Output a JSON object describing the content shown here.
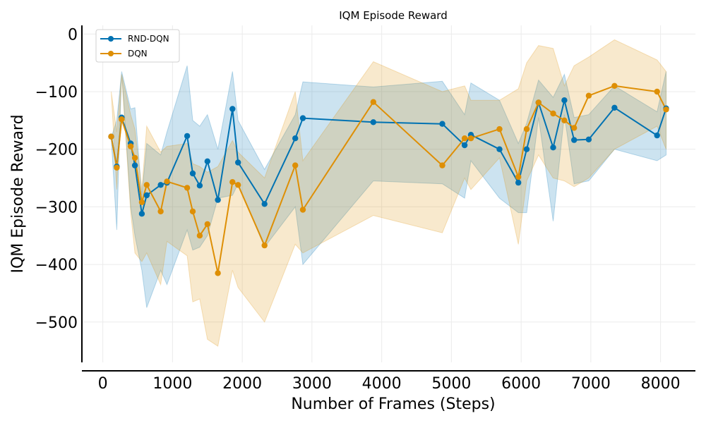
{
  "chart_data": {
    "type": "line",
    "title": "IQM Episode Reward",
    "xlabel": "Number of Frames (Steps)",
    "ylabel": "IQM Episode Reward",
    "xlim": [
      -300,
      8500
    ],
    "ylim": [
      -570,
      15
    ],
    "xticks": [
      0,
      1000,
      2000,
      3000,
      4000,
      5000,
      6000,
      7000,
      8000
    ],
    "yticks": [
      0,
      -100,
      -200,
      -300,
      -400,
      -500
    ],
    "ytick_labels": [
      "0",
      "−100",
      "−200",
      "−300",
      "−400",
      "−500"
    ],
    "grid": true,
    "legend": "top-left",
    "series": [
      {
        "name": "RND-DQN",
        "color": "#0072b2",
        "x": [
          120,
          200,
          270,
          400,
          460,
          560,
          630,
          830,
          920,
          1210,
          1290,
          1390,
          1500,
          1650,
          1860,
          1940,
          2320,
          2760,
          2870,
          3880,
          4870,
          5190,
          5280,
          5690,
          5960,
          6080,
          6250,
          6460,
          6620,
          6760,
          6970,
          7340,
          7950,
          8080
        ],
        "y": [
          -178,
          -230,
          -145,
          -190,
          -228,
          -312,
          -280,
          -262,
          -258,
          -177,
          -242,
          -263,
          -221,
          -288,
          -130,
          -223,
          -295,
          -181,
          -146,
          -153,
          -156,
          -193,
          -175,
          -200,
          -258,
          -200,
          -119,
          -197,
          -115,
          -184,
          -183,
          -128,
          -176,
          -129
        ],
        "lower": [
          -180,
          -340,
          -65,
          -300,
          -350,
          -410,
          -475,
          -410,
          -435,
          -340,
          -375,
          -370,
          -350,
          -285,
          -280,
          -260,
          -370,
          -300,
          -400,
          -255,
          -260,
          -285,
          -220,
          -285,
          -310,
          -310,
          -145,
          -325,
          -140,
          -260,
          -255,
          -200,
          -220,
          -210
        ],
        "upper": [
          -180,
          -150,
          -65,
          -130,
          -128,
          -280,
          -190,
          -210,
          -170,
          -55,
          -150,
          -160,
          -140,
          -200,
          -65,
          -150,
          -235,
          -140,
          -83,
          -92,
          -82,
          -140,
          -85,
          -115,
          -190,
          -155,
          -80,
          -110,
          -70,
          -145,
          -140,
          -90,
          -135,
          -65
        ]
      },
      {
        "name": "DQN",
        "color": "#de8f05",
        "x": [
          120,
          200,
          270,
          400,
          460,
          560,
          630,
          830,
          920,
          1210,
          1290,
          1390,
          1500,
          1650,
          1860,
          1940,
          2320,
          2760,
          2870,
          3880,
          4870,
          5190,
          5280,
          5690,
          5960,
          6080,
          6250,
          6460,
          6620,
          6760,
          6970,
          7340,
          7950,
          8080
        ],
        "y": [
          -178,
          -232,
          -148,
          -195,
          -215,
          -292,
          -262,
          -308,
          -256,
          -267,
          -308,
          -350,
          -330,
          -415,
          -257,
          -262,
          -367,
          -228,
          -305,
          -118,
          -228,
          -181,
          -181,
          -165,
          -248,
          -165,
          -119,
          -138,
          -150,
          -163,
          -107,
          -90,
          -100,
          -131
        ],
        "lower": [
          -100,
          -270,
          -70,
          -310,
          -380,
          -395,
          -380,
          -435,
          -360,
          -385,
          -465,
          -460,
          -530,
          -542,
          -410,
          -440,
          -500,
          -365,
          -380,
          -315,
          -345,
          -250,
          -270,
          -215,
          -365,
          -255,
          -210,
          -250,
          -255,
          -265,
          -250,
          -200,
          -160,
          -200
        ],
        "upper": [
          -100,
          -170,
          -70,
          -140,
          -165,
          -270,
          -160,
          -205,
          -195,
          -190,
          -225,
          -230,
          -240,
          -230,
          -185,
          -205,
          -250,
          -100,
          -220,
          -48,
          -100,
          -90,
          -115,
          -115,
          -95,
          -50,
          -20,
          -25,
          -90,
          -55,
          -40,
          -10,
          -45,
          -65
        ]
      }
    ]
  }
}
